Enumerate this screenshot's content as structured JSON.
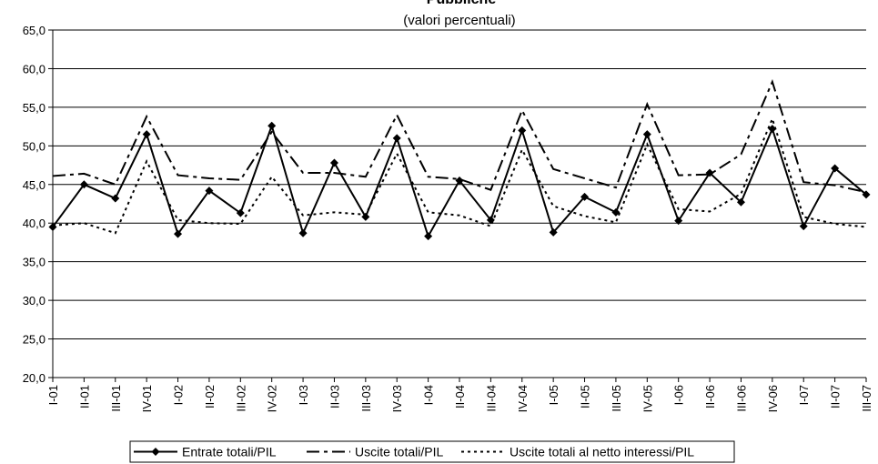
{
  "chart_data": {
    "type": "line",
    "title": "Pubbliche",
    "subtitle": "(valori percentuali)",
    "categories": [
      "I-01",
      "II-01",
      "III-01",
      "IV-01",
      "I-02",
      "II-02",
      "III-02",
      "IV-02",
      "I-03",
      "II-03",
      "III-03",
      "IV-03",
      "I-04",
      "II-04",
      "III-04",
      "IV-04",
      "I-05",
      "II-05",
      "III-05",
      "IV-05",
      "I-06",
      "II-06",
      "III-06",
      "IV-06",
      "I-07",
      "II-07",
      "III-07"
    ],
    "series": [
      {
        "name": "Entrate totali/PIL",
        "color": "#000000",
        "line_style": "solid",
        "marker": "diamond",
        "values": [
          39.5,
          45.0,
          43.2,
          51.5,
          38.6,
          44.2,
          41.3,
          52.6,
          38.7,
          47.8,
          40.8,
          51.0,
          38.3,
          45.5,
          40.4,
          52.0,
          38.8,
          43.4,
          41.4,
          51.5,
          40.3,
          46.5,
          42.7,
          52.2,
          39.6,
          47.1,
          43.7
        ]
      },
      {
        "name": "Uscite totali/PIL",
        "color": "#000000",
        "line_style": "dash",
        "values": [
          46.1,
          46.4,
          45.0,
          53.8,
          46.2,
          45.8,
          45.6,
          51.8,
          46.5,
          46.5,
          46.0,
          54.0,
          46.0,
          45.7,
          44.3,
          54.6,
          47.0,
          45.8,
          44.6,
          55.4,
          46.2,
          46.3,
          48.9,
          58.3,
          45.3,
          44.9,
          44.0
        ]
      },
      {
        "name": "Uscite totali al netto interessi/PIL",
        "color": "#000000",
        "line_style": "dot",
        "values": [
          39.7,
          40.0,
          38.7,
          48.0,
          40.4,
          40.0,
          39.9,
          46.0,
          41.0,
          41.4,
          41.1,
          49.0,
          41.4,
          41.0,
          39.6,
          49.5,
          42.2,
          40.9,
          40.1,
          50.2,
          41.8,
          41.5,
          43.8,
          53.5,
          40.8,
          39.9,
          39.5
        ]
      }
    ],
    "ylim": [
      20,
      65
    ],
    "yticks": [
      {
        "value": 20,
        "label": "20,0"
      },
      {
        "value": 25,
        "label": "25,0"
      },
      {
        "value": 30,
        "label": "30,0"
      },
      {
        "value": 35,
        "label": "35,0"
      },
      {
        "value": 40,
        "label": "40,0"
      },
      {
        "value": 45,
        "label": "45,0"
      },
      {
        "value": 50,
        "label": "50,0"
      },
      {
        "value": 55,
        "label": "55,0"
      },
      {
        "value": 60,
        "label": "60,0"
      },
      {
        "value": 65,
        "label": "65,0"
      }
    ],
    "grid": true,
    "legend": "bottom"
  }
}
